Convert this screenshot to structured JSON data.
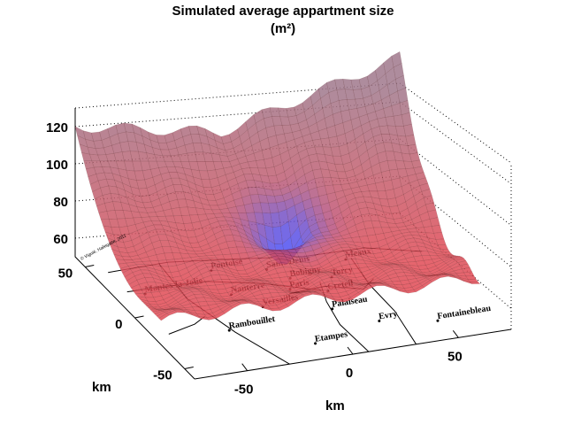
{
  "chart_data": {
    "type": "surface",
    "title": "Simulated average appartment size",
    "subtitle": "(m²)",
    "xlabel": "km",
    "ylabel": "km",
    "zlabel": "",
    "xticks": [
      "-50",
      "0",
      "50"
    ],
    "yticks": [
      "-50",
      "0",
      "50"
    ],
    "zticks": [
      "60",
      "80",
      "100",
      "120"
    ],
    "xlim": [
      -75,
      75
    ],
    "ylim": [
      -60,
      60
    ],
    "zlim": [
      50,
      130
    ],
    "description_values": {
      "max": 130,
      "min_at_paris": 45,
      "edge_typical": 62
    },
    "colors": {
      "high": "#ff4d4d",
      "low": "#3333ff"
    },
    "copyright": "© Viguié, Hallegatte, 2011",
    "cities": [
      "Pontoise",
      "Saint-Denis",
      "Meaux",
      "Mantes-la-Jolie",
      "Bobigny",
      "Torcy",
      "Nanterre",
      "Paris",
      "Creteil",
      "Versailles",
      "Palaiseau",
      "Evry",
      "Rambouillet",
      "Etampes",
      "Fontainebleau"
    ]
  }
}
